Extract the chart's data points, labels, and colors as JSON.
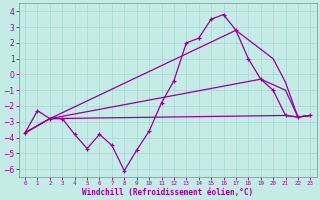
{
  "xlabel": "Windchill (Refroidissement éolien,°C)",
  "bg_color": "#c5ebe6",
  "grid_color": "#a8d8d2",
  "line_color": "#990099",
  "ylim": [
    -6.5,
    4.5
  ],
  "xlim": [
    -0.5,
    23.5
  ],
  "yticks": [
    -6,
    -5,
    -4,
    -3,
    -2,
    -1,
    0,
    1,
    2,
    3,
    4
  ],
  "xticks": [
    0,
    1,
    2,
    3,
    4,
    5,
    6,
    7,
    8,
    9,
    10,
    11,
    12,
    13,
    14,
    15,
    16,
    17,
    18,
    19,
    20,
    21,
    22,
    23
  ],
  "main_x": [
    0,
    1,
    2,
    3,
    4,
    5,
    6,
    7,
    8,
    9,
    10,
    11,
    12,
    13,
    14,
    15,
    16,
    17,
    18,
    19,
    20,
    21,
    22,
    23
  ],
  "main_y": [
    -3.7,
    -2.3,
    -2.8,
    -2.8,
    -3.8,
    -4.7,
    -3.8,
    -4.5,
    -6.1,
    -4.8,
    -3.6,
    -1.8,
    -0.4,
    2.0,
    2.3,
    3.5,
    3.8,
    2.8,
    1.0,
    -0.3,
    -1.0,
    -2.6,
    -2.7,
    -2.6
  ],
  "flat1_x": [
    0,
    2,
    21,
    22,
    23
  ],
  "flat1_y": [
    -3.7,
    -2.8,
    -2.6,
    -2.7,
    -2.6
  ],
  "flat2_x": [
    0,
    2,
    19,
    21,
    22,
    23
  ],
  "flat2_y": [
    -3.7,
    -2.8,
    -0.3,
    -1.0,
    -2.7,
    -2.6
  ],
  "flat3_x": [
    0,
    2,
    17,
    20,
    21,
    22,
    23
  ],
  "flat3_y": [
    -3.7,
    -2.8,
    2.8,
    1.0,
    -0.5,
    -2.7,
    -2.6
  ]
}
